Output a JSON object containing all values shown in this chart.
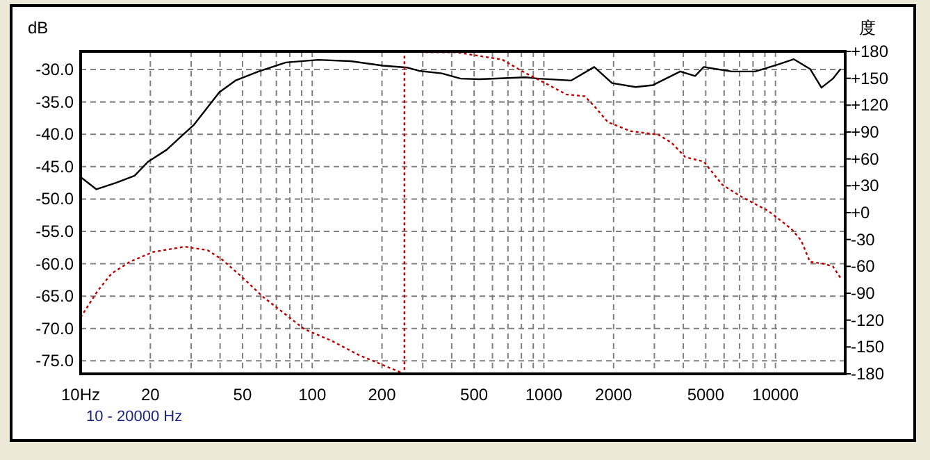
{
  "chart_data": {
    "type": "line",
    "ylabel": "dB",
    "y2label": "度",
    "annotations": [
      "10 - 20000 Hz"
    ],
    "log": "x",
    "grid": true,
    "xlim": [
      10,
      20000
    ],
    "xticks": [
      {
        "value": 10,
        "label": "10Hz"
      },
      20,
      {
        "value": 30,
        "label": null
      },
      {
        "value": 40,
        "label": null
      },
      50,
      {
        "value": 60,
        "label": null
      },
      {
        "value": 70,
        "label": null
      },
      {
        "value": 80,
        "label": null
      },
      {
        "value": 90,
        "label": null
      },
      100,
      200,
      {
        "value": 300,
        "label": null
      },
      {
        "value": 400,
        "label": null
      },
      500,
      {
        "value": 600,
        "label": null
      },
      {
        "value": 700,
        "label": null
      },
      {
        "value": 800,
        "label": null
      },
      {
        "value": 900,
        "label": null
      },
      1000,
      2000,
      {
        "value": 3000,
        "label": null
      },
      {
        "value": 4000,
        "label": null
      },
      5000,
      {
        "value": 6000,
        "label": null
      },
      {
        "value": 7000,
        "label": null
      },
      {
        "value": 8000,
        "label": null
      },
      {
        "value": 9000,
        "label": null
      },
      10000
    ],
    "ylim": [
      -77,
      -27.2
    ],
    "yticks": [
      {
        "value": -30,
        "label": "-30.0"
      },
      {
        "value": -35,
        "label": "-35.0"
      },
      {
        "value": -40,
        "label": "-40.0"
      },
      {
        "value": -45,
        "label": "-45.0"
      },
      {
        "value": -50,
        "label": "-50.0"
      },
      {
        "value": -55,
        "label": "-55.0"
      },
      {
        "value": -60,
        "label": "-60.0"
      },
      {
        "value": -65,
        "label": "-65.0"
      },
      {
        "value": -70,
        "label": "-70.0"
      },
      {
        "value": -75,
        "label": "-75.0"
      }
    ],
    "y2lim": [
      -180,
      180
    ],
    "y2ticks": [
      {
        "value": 180,
        "label": "+180"
      },
      {
        "value": 150,
        "label": "+150"
      },
      {
        "value": 120,
        "label": "+120"
      },
      {
        "value": 90,
        "label": "+90"
      },
      {
        "value": 60,
        "label": "+60"
      },
      {
        "value": 30,
        "label": "+30"
      },
      {
        "value": 0,
        "label": "+0"
      },
      -30,
      -60,
      -90,
      -120,
      -150,
      -180
    ],
    "series": [
      {
        "color": "#000000",
        "line_style": "solid",
        "x": [
          10,
          11.7,
          14.2,
          17.1,
          19.6,
          23.5,
          30.9,
          39.7,
          46.6,
          58.6,
          77,
          106,
          146,
          202,
          258,
          289,
          363,
          437,
          527,
          832,
          950,
          1310,
          1650,
          1970,
          2490,
          2960,
          3880,
          4500,
          4900,
          6470,
          8170,
          10300,
          12000,
          14100,
          15800,
          17700,
          19100
        ],
        "values": [
          -46.6,
          -48.5,
          -47.5,
          -46.4,
          -44.2,
          -42.4,
          -38.5,
          -33.5,
          -31.7,
          -30.3,
          -28.9,
          -28.5,
          -28.7,
          -29.4,
          -29.7,
          -30.2,
          -30.6,
          -31.4,
          -31.5,
          -31.2,
          -31.4,
          -31.7,
          -29.6,
          -32.1,
          -32.7,
          -32.4,
          -30.3,
          -31,
          -29.6,
          -30.3,
          -30.3,
          -29.2,
          -28.4,
          -29.9,
          -32.8,
          -31.4,
          -29.9
        ]
      },
      {
        "color": "#c00000",
        "line_style": "dotted",
        "axis": "y2",
        "x": [
          10,
          11.8,
          13.6,
          16.3,
          20.5,
          28.2,
          35.4,
          40.6,
          48.8,
          61.3,
          77,
          92.3,
          121,
          159,
          210,
          250,
          250,
          318,
          418,
          660,
          831,
          1040,
          1250,
          1500,
          1650,
          1890,
          2370,
          3120,
          3560,
          4080,
          4900,
          5900,
          7100,
          9300,
          11700,
          12900,
          14100,
          16100,
          17700,
          19100
        ],
        "values": [
          -117,
          -88,
          -68,
          -55,
          -44,
          -38,
          -42,
          -52,
          -70,
          -94,
          -114,
          -130,
          -143,
          -159,
          -172,
          -180,
          180,
          179,
          179,
          171,
          156,
          143,
          132,
          130,
          119,
          101,
          91,
          87,
          78,
          62,
          57,
          31,
          18,
          2,
          -18,
          -31,
          -55,
          -57,
          -60,
          -73
        ]
      }
    ]
  }
}
